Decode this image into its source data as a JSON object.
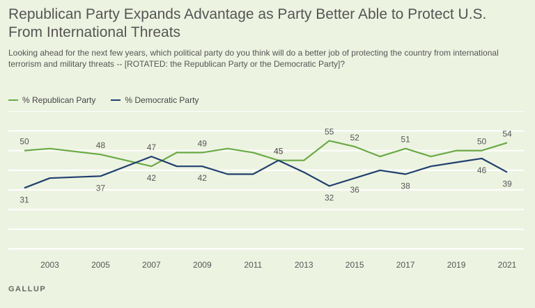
{
  "title": "Republican Party Expands Advantage as Party Better Able to Protect U.S. From International Threats",
  "subtitle": "Looking ahead for the next few years, which political party do you think will do a better job of protecting the country from international terrorism and military threats -- [ROTATED: the Republican Party or the Democratic Party]?",
  "source": "GALLUP",
  "colors": {
    "background": "#edf3e1",
    "republican": "#6aaa45",
    "democratic": "#1f3f6e",
    "grid": "#ffffff",
    "text": "#555555"
  },
  "chart_data": {
    "type": "line",
    "xlim": [
      2002,
      2021
    ],
    "ylim": [
      0,
      70
    ],
    "grid": true,
    "legend_position": "top-left",
    "tick_labels": [
      "2003",
      "2005",
      "2007",
      "2009",
      "2011",
      "2013",
      "2015",
      "2017",
      "2019",
      "2021"
    ],
    "series": [
      {
        "name": "% Republican Party",
        "color": "#6aaa45",
        "points": [
          {
            "x": 2002,
            "y": 50,
            "label": "50"
          },
          {
            "x": 2003,
            "y": 51
          },
          {
            "x": 2005,
            "y": 48,
            "label": "48"
          },
          {
            "x": 2007,
            "y": 42,
            "label": "42"
          },
          {
            "x": 2008,
            "y": 49
          },
          {
            "x": 2009,
            "y": 49,
            "label": "49"
          },
          {
            "x": 2010,
            "y": 51
          },
          {
            "x": 2011,
            "y": 49
          },
          {
            "x": 2012,
            "y": 45,
            "label": "45"
          },
          {
            "x": 2013,
            "y": 45
          },
          {
            "x": 2014,
            "y": 55,
            "label": "55"
          },
          {
            "x": 2015,
            "y": 52,
            "label": "52"
          },
          {
            "x": 2016,
            "y": 47
          },
          {
            "x": 2017,
            "y": 51,
            "label": "51"
          },
          {
            "x": 2018,
            "y": 47
          },
          {
            "x": 2019,
            "y": 50
          },
          {
            "x": 2020,
            "y": 50,
            "label": "50"
          },
          {
            "x": 2021,
            "y": 54,
            "label": "54"
          }
        ]
      },
      {
        "name": "% Democratic Party",
        "color": "#1f3f6e",
        "points": [
          {
            "x": 2002,
            "y": 31,
            "label": "31"
          },
          {
            "x": 2003,
            "y": 36
          },
          {
            "x": 2005,
            "y": 37,
            "label": "37"
          },
          {
            "x": 2007,
            "y": 47,
            "label": "47"
          },
          {
            "x": 2008,
            "y": 42
          },
          {
            "x": 2009,
            "y": 42,
            "label": "42"
          },
          {
            "x": 2010,
            "y": 38
          },
          {
            "x": 2011,
            "y": 38
          },
          {
            "x": 2012,
            "y": 45,
            "label": "45"
          },
          {
            "x": 2013,
            "y": 39
          },
          {
            "x": 2014,
            "y": 32,
            "label": "32"
          },
          {
            "x": 2015,
            "y": 36,
            "label": "36"
          },
          {
            "x": 2016,
            "y": 40
          },
          {
            "x": 2017,
            "y": 38,
            "label": "38"
          },
          {
            "x": 2018,
            "y": 42
          },
          {
            "x": 2019,
            "y": 44
          },
          {
            "x": 2020,
            "y": 46,
            "label": "46"
          },
          {
            "x": 2021,
            "y": 39,
            "label": "39"
          }
        ]
      }
    ]
  }
}
